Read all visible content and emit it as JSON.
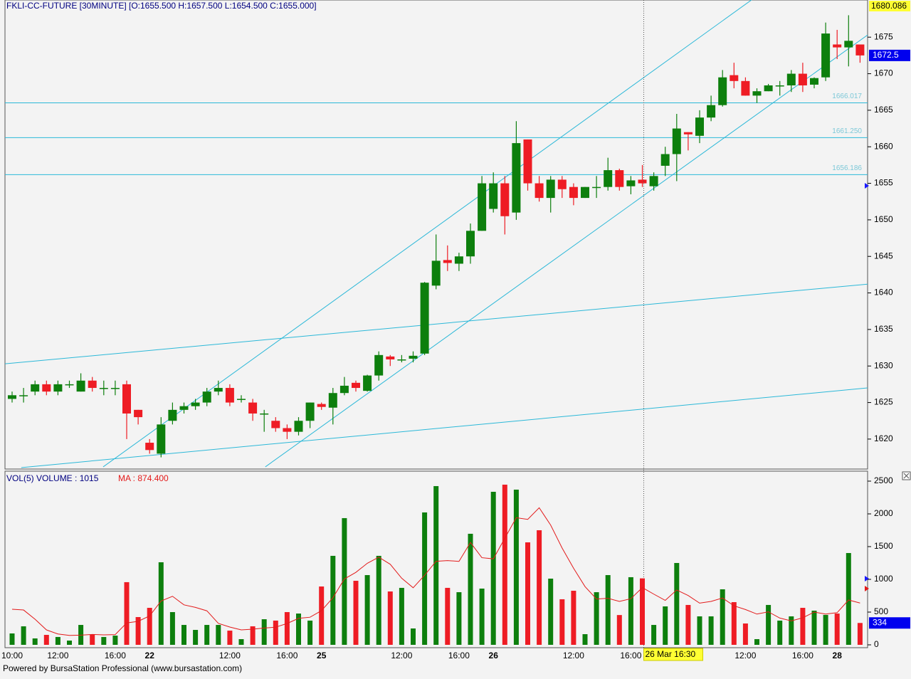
{
  "chart_data": [
    {
      "type": "candlestick",
      "title": "FKLI-CC-FUTURE  [30MINUTE]  [O:1655.500  H:1657.500  L:1654.500  C:1655.000]",
      "crosshair_label": "26 Mar 16:30",
      "footer": "Powered by BursaStation Professional (www.bursastation.com)",
      "categories": [
        "10:00",
        null,
        null,
        null,
        "12:00",
        null,
        null,
        null,
        null,
        "16:00",
        null,
        null,
        "22",
        null,
        null,
        null,
        null,
        null,
        null,
        "12:00",
        null,
        null,
        null,
        null,
        "16:00",
        null,
        null,
        "25",
        null,
        null,
        null,
        null,
        null,
        null,
        "12:00",
        null,
        null,
        null,
        null,
        "16:00",
        null,
        null,
        "26",
        null,
        null,
        null,
        null,
        null,
        null,
        "12:00",
        null,
        null,
        null,
        null,
        "16:00",
        null,
        null,
        null,
        null,
        null,
        null,
        null,
        null,
        null,
        "12:00",
        null,
        null,
        null,
        null,
        "16:00",
        null,
        null,
        "28",
        null,
        null
      ],
      "open": [
        1625.5,
        1626,
        1626.5,
        1627.5,
        1626.5,
        1627.5,
        1626.5,
        1628,
        1627,
        1627,
        1627.5,
        1624,
        1619.5,
        1618,
        1622.5,
        1624,
        1624.5,
        1625,
        1626.5,
        1627,
        1625.5,
        1625,
        1623.5,
        1622.5,
        1621.5,
        1621,
        1622.5,
        1624.8,
        1624.3,
        1626.3,
        1627.7,
        1626.6,
        1628.7,
        1631.3,
        1630.9,
        1631,
        1631.7,
        1641,
        1644.5,
        1644,
        1645,
        1648.5,
        1651.5,
        1655,
        1651,
        1661,
        1655,
        1653,
        1655.5,
        1654.5,
        1653,
        1654.5,
        1654.5,
        1656.8,
        1654.6,
        1655.5,
        1654.6,
        1657.4,
        1659,
        1662,
        1661.5,
        1664,
        1665.7,
        1669.8,
        1669,
        1667,
        1667.6,
        1668.4,
        1668.4,
        1670,
        1668.5,
        1669.5,
        1674,
        1673.6,
        1674
      ],
      "high": [
        1626.5,
        1627,
        1628,
        1628,
        1628,
        1628,
        1629,
        1628.5,
        1628,
        1628,
        1628,
        1624,
        1620,
        1623,
        1625,
        1625,
        1625.5,
        1627,
        1628,
        1627.5,
        1626,
        1625.5,
        1624,
        1623,
        1622,
        1623,
        1625,
        1625,
        1627,
        1628.5,
        1628,
        1628.8,
        1632,
        1631.5,
        1631.5,
        1632,
        1641.5,
        1648,
        1646.5,
        1645.5,
        1649.5,
        1656,
        1656.5,
        1656,
        1663.5,
        1661,
        1656,
        1656,
        1656,
        1655,
        1654.5,
        1656,
        1658.5,
        1657,
        1656,
        1657.5,
        1656.5,
        1660,
        1664.5,
        1662,
        1665,
        1667,
        1670.5,
        1671.5,
        1669.5,
        1668,
        1668.6,
        1669,
        1670.5,
        1671.5,
        1669.5,
        1677,
        1676,
        1678,
        1674
      ],
      "low": [
        1625,
        1625,
        1626,
        1626,
        1626,
        1627,
        1626.5,
        1626.5,
        1626,
        1626,
        1620,
        1622,
        1618,
        1617.5,
        1622,
        1623.5,
        1624,
        1624.5,
        1626,
        1624.5,
        1625,
        1622.5,
        1621,
        1621,
        1620,
        1620.5,
        1621.5,
        1624,
        1622,
        1626,
        1626.5,
        1626.5,
        1628,
        1630,
        1630.5,
        1630.5,
        1631.5,
        1640.5,
        1643,
        1643,
        1644,
        1648.5,
        1651,
        1648,
        1650,
        1654,
        1652.5,
        1651,
        1653,
        1652,
        1653,
        1653,
        1654,
        1654,
        1653.5,
        1654.5,
        1654,
        1656,
        1655.3,
        1659.5,
        1660.5,
        1663.5,
        1665.5,
        1668,
        1667,
        1666,
        1667.6,
        1667,
        1667.5,
        1667.5,
        1668,
        1669,
        1672,
        1671,
        1671.5
      ],
      "close": [
        1626,
        1626,
        1627.5,
        1626.5,
        1627.5,
        1627.5,
        1628,
        1627,
        1627,
        1627,
        1623.5,
        1623,
        1618.5,
        1622,
        1624,
        1624.5,
        1625,
        1626.5,
        1627,
        1625,
        1625.5,
        1623.5,
        1623.5,
        1621.5,
        1621,
        1622.5,
        1625,
        1624.4,
        1626.3,
        1627.3,
        1627,
        1628.7,
        1631.5,
        1630.9,
        1630.9,
        1631.4,
        1641.4,
        1644.4,
        1644.1,
        1645,
        1648.5,
        1655,
        1655,
        1650.5,
        1660.5,
        1655,
        1653,
        1655.5,
        1654.2,
        1653,
        1654.5,
        1654.5,
        1656.8,
        1654.5,
        1655.4,
        1655,
        1656,
        1659,
        1662.5,
        1661.7,
        1664,
        1665.7,
        1669.5,
        1669,
        1667,
        1667.6,
        1668.4,
        1668.4,
        1670,
        1668.4,
        1669.4,
        1675.5,
        1673.6,
        1674.5,
        1672.5
      ],
      "up_color": "#0d7f0d",
      "down_color": "#ee1c24",
      "ylim": [
        1615.9,
        1680.086
      ],
      "yticks": [
        1620,
        1625,
        1630,
        1635,
        1640,
        1645,
        1650,
        1655,
        1660,
        1665,
        1670,
        1675
      ],
      "hlines": [
        1666.017,
        {
          "value": 1661.25,
          "label": "1661.250"
        },
        1656.186
      ],
      "line_color": "#2bb8d8",
      "trendlines": [
        {
          "x": [
            7.95,
            64.8
          ],
          "y": [
            1616.2,
            1680.4
          ]
        },
        {
          "x": [
            22.1,
            74.66
          ],
          "y": [
            1616.2,
            1675.3
          ]
        },
        {
          "x": [
            -0.62,
            74.66
          ],
          "y": [
            1630.3,
            1641.2
          ]
        },
        {
          "x": [
            0.8,
            74.66
          ],
          "y": [
            1616.1,
            1627
          ]
        }
      ]
    },
    {
      "type": "bar",
      "title": "VOL(5)   VOLUME : 1015",
      "subtitle": "MA : 874.400",
      "values": [
        174,
        283,
        98,
        152,
        120,
        65,
        304,
        152,
        120,
        141,
        957,
        424,
        565,
        1261,
        500,
        304,
        228,
        304,
        304,
        217,
        87,
        283,
        391,
        370,
        500,
        478,
        370,
        891,
        1359,
        1935,
        978,
        1065,
        1359,
        815,
        870,
        250,
        2022,
        2424,
        870,
        804,
        1696,
        859,
        2337,
        2446,
        2370,
        1565,
        1750,
        1011,
        696,
        826,
        163,
        804,
        1065,
        455,
        1033,
        1015,
        304,
        587,
        1250,
        609,
        435,
        435,
        848,
        652,
        326,
        87,
        609,
        370,
        435,
        565,
        522,
        457,
        478,
        1402,
        334
      ],
      "ma": [
        543,
        532,
        391,
        228,
        165.4,
        143.6,
        147.8,
        158.6,
        152.2,
        156.4,
        334.8,
        358.8,
        441.4,
        669.6,
        741.4,
        610.8,
        571.6,
        519.4,
        328,
        271.4,
        228,
        239,
        256.4,
        269.6,
        326.2,
        404.4,
        421.8,
        521.8,
        719.6,
        1006.6,
        1106.6,
        1245.6,
        1339.2,
        1230.4,
        1017.4,
        871.8,
        1063.2,
        1276.2,
        1287.2,
        1274,
        1563.2,
        1330.6,
        1313.2,
        1628.4,
        1941.6,
        1915.4,
        2093.6,
        1828.4,
        1478.4,
        1169.6,
        889.2,
        700,
        710.8,
        662.6,
        704,
        874.4,
        774.4,
        678.8,
        837.8,
        753,
        637,
        663.2,
        715.4,
        595.8,
        539.2,
        469.6,
        504.4,
        408.8,
        365.4,
        413.2,
        500.2,
        469.8,
        491.4,
        684.8,
        638.6
      ],
      "ma_color": "#e31a1a",
      "ylim": [
        -43.5,
        2652
      ],
      "yticks": [
        0,
        500,
        1000,
        1500,
        2000,
        2500
      ]
    }
  ]
}
